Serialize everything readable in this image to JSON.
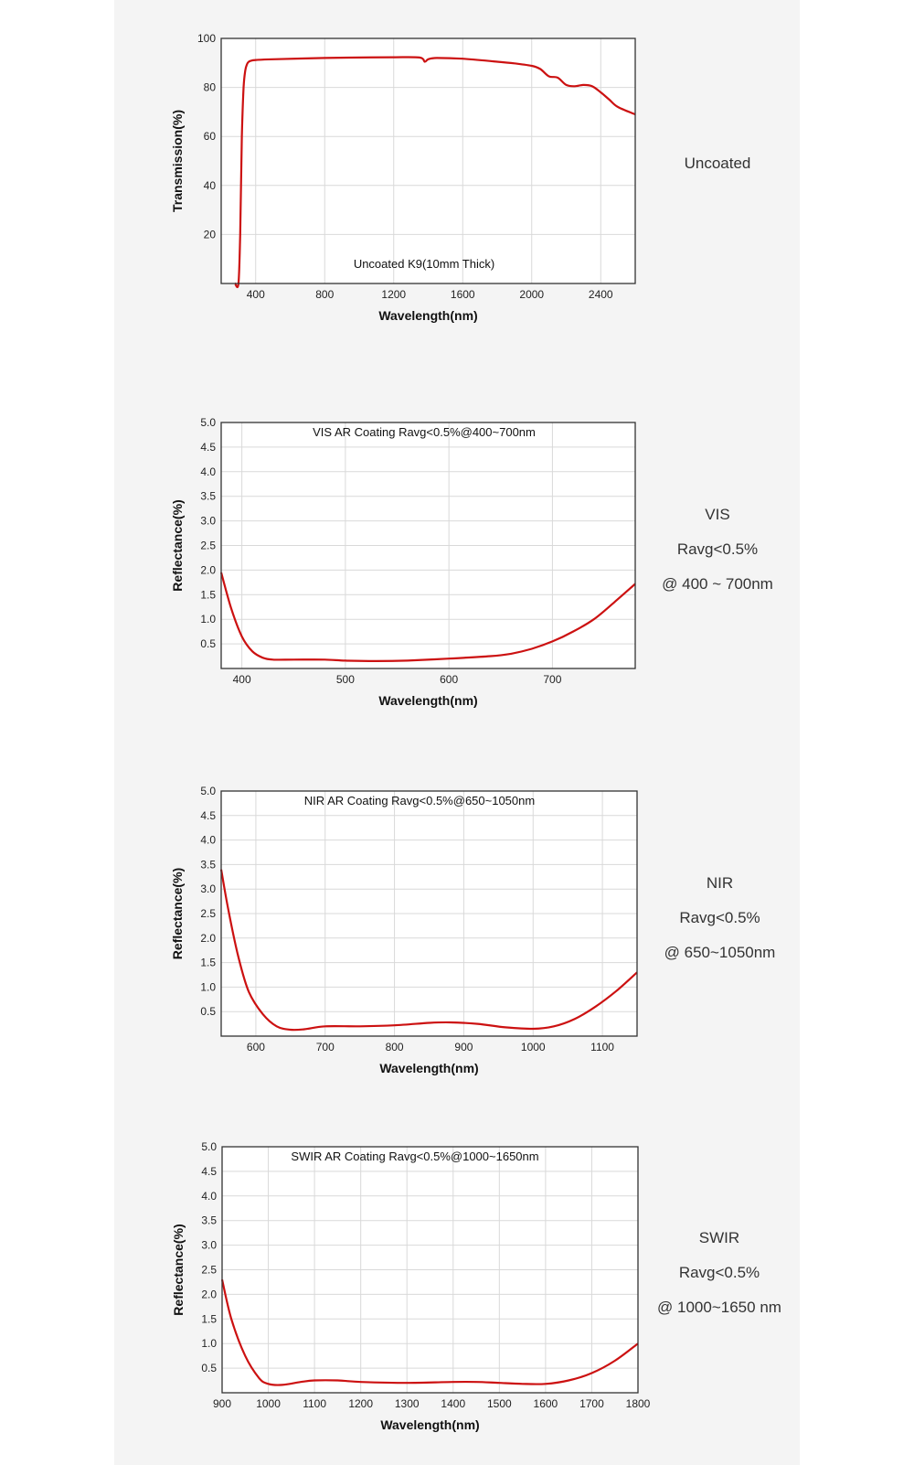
{
  "colors": {
    "curve": "#cc1111",
    "grid": "#d9d9d9",
    "frame": "#333333"
  },
  "charts": [
    {
      "side_label": [
        "Uncoated"
      ],
      "chart_data": {
        "type": "line",
        "title": "Uncoated K9(10mm Thick)",
        "xlabel": "Wavelength(nm)",
        "ylabel": "Transmission(%)",
        "xlim": [
          200,
          2600
        ],
        "ylim": [
          0,
          100
        ],
        "xticks": [
          400,
          800,
          1200,
          1600,
          2000,
          2400
        ],
        "yticks": [
          20,
          40,
          60,
          80,
          100
        ],
        "grid": true,
        "series": [
          {
            "x": [
              280,
              300,
              310,
              320,
              330,
              340,
              350,
              360,
              380,
              400,
              500,
              800,
              1000,
              1200,
              1350,
              1380,
              1400,
              1450,
              1600,
              1800,
              1900,
              2000,
              2050,
              2100,
              2150,
              2200,
              2250,
              2300,
              2350,
              2400,
              2450,
              2500,
              2600
            ],
            "y": [
              0,
              0,
              20,
              60,
              80,
              87,
              89.5,
              90.5,
              91,
              91.2,
              91.5,
              92,
              92.2,
              92.3,
              92.2,
              90.5,
              91.5,
              92,
              91.7,
              90.5,
              89.8,
              88.8,
              87.5,
              84.5,
              84,
              81,
              80.5,
              81,
              80.5,
              78,
              75,
              72,
              69
            ]
          }
        ]
      }
    },
    {
      "side_label": [
        "VIS",
        "Ravg<0.5%",
        "@ 400 ~ 700nm"
      ],
      "chart_data": {
        "type": "line",
        "title": "VIS AR Coating Ravg<0.5%@400~700nm",
        "xlabel": "Wavelength(nm)",
        "ylabel": "Reflectance(%)",
        "xlim": [
          380,
          780
        ],
        "ylim": [
          0,
          5
        ],
        "xticks": [
          400,
          500,
          600,
          700
        ],
        "yticks": [
          0.5,
          1.0,
          1.5,
          2.0,
          2.5,
          3.0,
          3.5,
          4.0,
          4.5,
          5.0
        ],
        "ytick_labels": [
          "0.5",
          "1.0",
          "1.5",
          "2.0",
          "2.5",
          "3.0",
          "3.5",
          "4.0",
          "4.5",
          "5.0"
        ],
        "grid": true,
        "series": [
          {
            "x": [
              380,
              390,
              400,
              410,
              420,
              430,
              450,
              480,
              500,
              530,
              560,
              600,
              640,
              660,
              680,
              700,
              720,
              740,
              760,
              780
            ],
            "y": [
              1.95,
              1.2,
              0.65,
              0.35,
              0.22,
              0.18,
              0.18,
              0.18,
              0.16,
              0.15,
              0.16,
              0.2,
              0.25,
              0.3,
              0.4,
              0.55,
              0.75,
              1.0,
              1.35,
              1.72
            ]
          }
        ]
      }
    },
    {
      "side_label": [
        "NIR",
        "Ravg<0.5%",
        "@ 650~1050nm"
      ],
      "chart_data": {
        "type": "line",
        "title": "NIR AR Coating Ravg<0.5%@650~1050nm",
        "xlabel": "Wavelength(nm)",
        "ylabel": "Reflectance(%)",
        "xlim": [
          550,
          1150
        ],
        "ylim": [
          0,
          5
        ],
        "xticks": [
          600,
          700,
          800,
          900,
          1000,
          1100
        ],
        "yticks": [
          0.5,
          1.0,
          1.5,
          2.0,
          2.5,
          3.0,
          3.5,
          4.0,
          4.5,
          5.0
        ],
        "ytick_labels": [
          "0.5",
          "1.0",
          "1.5",
          "2.0",
          "2.5",
          "3.0",
          "3.5",
          "4.0",
          "4.5",
          "5.0"
        ],
        "grid": true,
        "series": [
          {
            "x": [
              550,
              560,
              575,
              590,
              610,
              630,
              650,
              670,
              700,
              750,
              800,
              850,
              880,
              920,
              960,
              1000,
              1030,
              1060,
              1090,
              1120,
              1150
            ],
            "y": [
              3.4,
              2.6,
              1.6,
              0.9,
              0.45,
              0.2,
              0.13,
              0.14,
              0.2,
              0.2,
              0.22,
              0.27,
              0.28,
              0.25,
              0.18,
              0.15,
              0.2,
              0.35,
              0.6,
              0.92,
              1.3
            ]
          }
        ]
      }
    },
    {
      "side_label": [
        "SWIR",
        "Ravg<0.5%",
        "@ 1000~1650 nm"
      ],
      "chart_data": {
        "type": "line",
        "title": "SWIR AR Coating Ravg<0.5%@1000~1650nm",
        "xlabel": "Wavelength(nm)",
        "ylabel": "Reflectance(%)",
        "xlim": [
          900,
          1800
        ],
        "ylim": [
          0,
          5
        ],
        "xticks": [
          900,
          1000,
          1100,
          1200,
          1300,
          1400,
          1500,
          1600,
          1700,
          1800
        ],
        "yticks": [
          0.5,
          1.0,
          1.5,
          2.0,
          2.5,
          3.0,
          3.5,
          4.0,
          4.5,
          5.0
        ],
        "ytick_labels": [
          "0.5",
          "1.0",
          "1.5",
          "2.0",
          "2.5",
          "3.0",
          "3.5",
          "4.0",
          "4.5",
          "5.0"
        ],
        "grid": true,
        "series": [
          {
            "x": [
              900,
              920,
              950,
              980,
              1000,
              1030,
              1070,
              1100,
              1150,
              1200,
              1300,
              1400,
              1450,
              1500,
              1550,
              1600,
              1650,
              1700,
              1750,
              1800
            ],
            "y": [
              2.3,
              1.5,
              0.75,
              0.3,
              0.18,
              0.16,
              0.22,
              0.25,
              0.25,
              0.22,
              0.2,
              0.22,
              0.22,
              0.2,
              0.18,
              0.18,
              0.25,
              0.4,
              0.65,
              1.0
            ]
          }
        ]
      }
    }
  ]
}
